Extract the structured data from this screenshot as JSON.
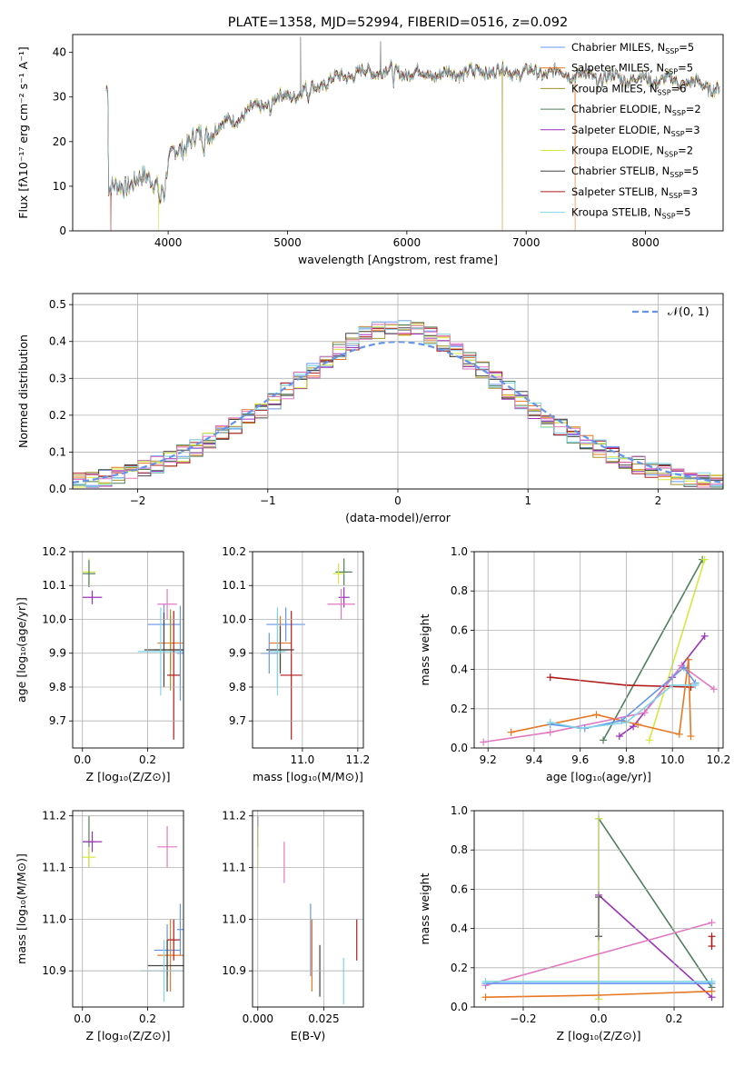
{
  "chart_data": [
    {
      "id": "spectrum",
      "type": "line",
      "title": "PLATE=1358, MJD=52994, FIBERID=0516, z=0.092",
      "xlabel": "wavelength [Angstrom, rest frame]",
      "ylabel": "Flux [fλ10⁻¹⁷ erg cm⁻² s⁻¹ A⁻¹]",
      "xlim": [
        3200,
        8650
      ],
      "ylim": [
        0,
        44
      ],
      "xticks": [
        4000,
        5000,
        6000,
        7000,
        8000
      ],
      "yticks": [
        0,
        10,
        20,
        30,
        40
      ],
      "grid": false,
      "legend_position": "top-right",
      "shape": {
        "x": [
          3500,
          3700,
          3850,
          3950,
          4050,
          4250,
          4400,
          4700,
          4900,
          5100,
          5300,
          5500,
          5800,
          6000,
          6300,
          6600,
          7000,
          7300,
          7600,
          8000,
          8300,
          8600
        ],
        "y": [
          9,
          11,
          12,
          10,
          18,
          21,
          23,
          27,
          29.5,
          31,
          33,
          35,
          36,
          35.5,
          35,
          36,
          35.5,
          35.5,
          34.5,
          34,
          33.5,
          32
        ]
      },
      "drops": [
        {
          "x": 3520,
          "series": 7
        },
        {
          "x": 3920,
          "series": 5
        },
        {
          "x": 6800,
          "series": 2
        },
        {
          "x": 7410,
          "series": 1
        }
      ],
      "spikes": [
        {
          "x": 5110,
          "y": 43.5
        },
        {
          "x": 5780,
          "y": 42.5
        }
      ],
      "series": [
        {
          "name": "Chabrier MILES, N",
          "sub": "SSP",
          "count": "=5",
          "color": "#6495ed"
        },
        {
          "name": "Salpeter MILES, N",
          "sub": "SSP",
          "count": "=5",
          "color": "#e87722"
        },
        {
          "name": "Kroupa MILES, N",
          "sub": "SSP",
          "count": "=6",
          "color": "#a89227"
        },
        {
          "name": "Chabrier ELODIE, N",
          "sub": "SSP",
          "count": "=2",
          "color": "#4f7f5a"
        },
        {
          "name": "Salpeter ELODIE, N",
          "sub": "SSP",
          "count": "=3",
          "color": "#9b30b8"
        },
        {
          "name": "Kroupa ELODIE, N",
          "sub": "SSP",
          "count": "=2",
          "color": "#d4ea3c"
        },
        {
          "name": "Chabrier STELIB, N",
          "sub": "SSP",
          "count": "=5",
          "color": "#444444"
        },
        {
          "name": "Salpeter STELIB, N",
          "sub": "SSP",
          "count": "=3",
          "color": "#b01a1a"
        },
        {
          "name": "Kroupa STELIB, N",
          "sub": "SSP",
          "count": "=5",
          "color": "#7fd6e8"
        }
      ]
    },
    {
      "id": "residual-hist",
      "type": "histogram",
      "xlabel": "(data-model)/error",
      "ylabel": "Normed distribution",
      "xlim": [
        -2.5,
        2.5
      ],
      "ylim": [
        0,
        0.53
      ],
      "xticks": [
        -2,
        -1,
        0,
        1,
        2
      ],
      "yticks": [
        0.0,
        0.1,
        0.2,
        0.3,
        0.4,
        0.5
      ],
      "grid": true,
      "bin_width": 0.1,
      "legend_position": "top-right",
      "gaussian_label": "𝒩(0, 1)",
      "gaussian_color": "#6495ed",
      "series_colors": [
        "#6495ed",
        "#e87722",
        "#a89227",
        "#4f7f5a",
        "#9b30b8",
        "#d4ea3c",
        "#444444",
        "#b01a1a",
        "#7fd6e8",
        "#e377c2"
      ]
    },
    {
      "id": "age-vs-Z",
      "type": "errorbar",
      "xlabel": "Z [log₁₀(Z/Z⊙)]",
      "ylabel": "age  [log₁₀(age/yr)]",
      "xlim": [
        -0.03,
        0.31
      ],
      "ylim": [
        9.62,
        10.2
      ],
      "xticks": [
        0.0,
        0.2
      ],
      "yticks": [
        9.7,
        9.8,
        9.9,
        10.0,
        10.1,
        10.2
      ],
      "grid": true,
      "points": [
        {
          "x": 0.02,
          "y": 10.14,
          "xerr": 0.02,
          "yerr": 0.04,
          "color": "#d4ea3c"
        },
        {
          "x": 0.02,
          "y": 10.135,
          "xerr": 0.02,
          "yerr": 0.04,
          "color": "#4f7f5a"
        },
        {
          "x": 0.03,
          "y": 10.065,
          "xerr": 0.03,
          "yerr": 0.02,
          "color": "#9b30b8"
        },
        {
          "x": 0.26,
          "y": 10.045,
          "xerr": 0.03,
          "yerr": 0.045,
          "color": "#e377c2"
        },
        {
          "x": 0.25,
          "y": 9.985,
          "xerr": 0.05,
          "yerr": 0.06,
          "color": "#6495ed"
        },
        {
          "x": 0.27,
          "y": 9.93,
          "xerr": 0.04,
          "yerr": 0.08,
          "color": "#e87722"
        },
        {
          "x": 0.27,
          "y": 9.91,
          "xerr": 0.05,
          "yerr": 0.12,
          "color": "#a89227"
        },
        {
          "x": 0.25,
          "y": 9.91,
          "xerr": 0.06,
          "yerr": 0.11,
          "color": "#444444"
        },
        {
          "x": 0.24,
          "y": 9.905,
          "xerr": 0.07,
          "yerr": 0.13,
          "color": "#7fd6e8"
        },
        {
          "x": 0.28,
          "y": 9.835,
          "xerr": 0.02,
          "yerr": 0.19,
          "color": "#b01a1a"
        },
        {
          "x": 0.3,
          "y": 9.9,
          "xerr": 0.01,
          "yerr": 0.14,
          "color": "#6495ed"
        }
      ]
    },
    {
      "id": "age-vs-mass",
      "type": "errorbar",
      "xlabel": "mass [log₁₀(M/M⊙)]",
      "ylabel": "",
      "xlim": [
        10.82,
        11.22
      ],
      "ylim": [
        9.62,
        10.2
      ],
      "xticks": [
        10.8,
        11.0,
        11.2
      ],
      "yticks": [
        9.7,
        9.8,
        9.9,
        10.0,
        10.1,
        10.2
      ],
      "grid": true,
      "points": [
        {
          "x": 11.15,
          "y": 10.14,
          "xerr": 0.03,
          "yerr": 0.04,
          "color": "#4f7f5a"
        },
        {
          "x": 11.13,
          "y": 10.135,
          "xerr": 0.02,
          "yerr": 0.03,
          "color": "#d4ea3c"
        },
        {
          "x": 11.15,
          "y": 10.065,
          "xerr": 0.02,
          "yerr": 0.03,
          "color": "#9b30b8"
        },
        {
          "x": 11.14,
          "y": 10.045,
          "xerr": 0.05,
          "yerr": 0.045,
          "color": "#e377c2"
        },
        {
          "x": 10.94,
          "y": 9.985,
          "xerr": 0.07,
          "yerr": 0.05,
          "color": "#6495ed"
        },
        {
          "x": 10.92,
          "y": 9.93,
          "xerr": 0.04,
          "yerr": 0.08,
          "color": "#e87722"
        },
        {
          "x": 10.91,
          "y": 9.91,
          "xerr": 0.04,
          "yerr": 0.11,
          "color": "#a89227"
        },
        {
          "x": 10.92,
          "y": 9.91,
          "xerr": 0.05,
          "yerr": 0.07,
          "color": "#444444"
        },
        {
          "x": 10.91,
          "y": 9.905,
          "xerr": 0.03,
          "yerr": 0.13,
          "color": "#7fd6e8"
        },
        {
          "x": 10.96,
          "y": 9.835,
          "xerr": 0.04,
          "yerr": 0.19,
          "color": "#b01a1a"
        },
        {
          "x": 10.88,
          "y": 9.9,
          "xerr": 0.03,
          "yerr": 0.06,
          "color": "#6495ed"
        }
      ]
    },
    {
      "id": "weight-vs-age",
      "type": "line",
      "xlabel": "age  [log₁₀(age/yr)]",
      "ylabel": "mass weight",
      "xlim": [
        9.14,
        10.22
      ],
      "ylim": [
        0,
        1
      ],
      "xticks": [
        9.2,
        9.4,
        9.6,
        9.8,
        10.0,
        10.2
      ],
      "yticks": [
        0.0,
        0.2,
        0.4,
        0.6,
        0.8,
        1.0
      ],
      "grid": true,
      "series": [
        {
          "color": "#4f7f5a",
          "x": [
            9.7,
            10.13
          ],
          "y": [
            0.04,
            0.96
          ]
        },
        {
          "color": "#d4ea3c",
          "x": [
            9.9,
            10.14
          ],
          "y": [
            0.04,
            0.96
          ]
        },
        {
          "color": "#9b30b8",
          "x": [
            9.77,
            9.83,
            10.0,
            10.14
          ],
          "y": [
            0.06,
            0.11,
            0.36,
            0.57
          ]
        },
        {
          "color": "#b01a1a",
          "x": [
            9.47,
            9.8,
            10.08
          ],
          "y": [
            0.36,
            0.32,
            0.31
          ]
        },
        {
          "color": "#e377c2",
          "x": [
            9.18,
            9.47,
            9.88,
            10.04,
            10.18
          ],
          "y": [
            0.03,
            0.08,
            0.18,
            0.42,
            0.3
          ]
        },
        {
          "color": "#e87722",
          "x": [
            9.3,
            9.67,
            9.85,
            10.03,
            10.07,
            10.08
          ],
          "y": [
            0.08,
            0.17,
            0.12,
            0.07,
            0.45,
            0.06
          ]
        },
        {
          "color": "#6495ed",
          "x": [
            9.47,
            9.62,
            9.78,
            10.05,
            10.1
          ],
          "y": [
            0.12,
            0.1,
            0.14,
            0.41,
            0.33
          ]
        },
        {
          "color": "#7fd6e8",
          "x": [
            9.47,
            9.6,
            9.8,
            10.0,
            10.1
          ],
          "y": [
            0.13,
            0.1,
            0.13,
            0.32,
            0.32
          ]
        }
      ]
    },
    {
      "id": "mass-vs-Z",
      "type": "errorbar",
      "xlabel": "Z [log₁₀(Z/Z⊙)]",
      "ylabel": "mass [log₁₀(M/M⊙)]",
      "xlim": [
        -0.03,
        0.31
      ],
      "ylim": [
        10.83,
        11.21
      ],
      "xticks": [
        0.0,
        0.2
      ],
      "yticks": [
        10.9,
        11.0,
        11.1,
        11.2
      ],
      "grid": true,
      "points": [
        {
          "x": 0.02,
          "y": 11.15,
          "xerr": 0.02,
          "yerr": 0.05,
          "color": "#4f7f5a"
        },
        {
          "x": 0.03,
          "y": 11.15,
          "xerr": 0.03,
          "yerr": 0.02,
          "color": "#9b30b8"
        },
        {
          "x": 0.02,
          "y": 11.12,
          "xerr": 0.02,
          "yerr": 0.02,
          "color": "#d4ea3c"
        },
        {
          "x": 0.26,
          "y": 11.14,
          "xerr": 0.03,
          "yerr": 0.04,
          "color": "#e377c2"
        },
        {
          "x": 0.26,
          "y": 10.94,
          "xerr": 0.04,
          "yerr": 0.05,
          "color": "#6495ed"
        },
        {
          "x": 0.27,
          "y": 10.93,
          "xerr": 0.04,
          "yerr": 0.07,
          "color": "#e87722"
        },
        {
          "x": 0.26,
          "y": 10.91,
          "xerr": 0.06,
          "yerr": 0.05,
          "color": "#444444"
        },
        {
          "x": 0.25,
          "y": 10.9,
          "xerr": 0.07,
          "yerr": 0.06,
          "color": "#7fd6e8"
        },
        {
          "x": 0.28,
          "y": 10.96,
          "xerr": 0.02,
          "yerr": 0.04,
          "color": "#b01a1a"
        },
        {
          "x": 0.3,
          "y": 10.98,
          "xerr": 0.01,
          "yerr": 0.05,
          "color": "#6495ed"
        }
      ]
    },
    {
      "id": "mass-vs-ebv",
      "type": "errorbar",
      "xlabel": "E(B-V)",
      "ylabel": "",
      "xlim": [
        -0.002,
        0.04
      ],
      "ylim": [
        10.83,
        11.21
      ],
      "xticks": [
        0.0,
        0.025
      ],
      "yticks": [
        10.9,
        11.0,
        11.1,
        11.2
      ],
      "grid": true,
      "points": [
        {
          "x": 0.0,
          "y": 11.17,
          "xerr": 0,
          "yerr": 0.03,
          "color": "#4f7f5a"
        },
        {
          "x": 0.0,
          "y": 11.14,
          "xerr": 0,
          "yerr": 0.04,
          "color": "#d4ea3c"
        },
        {
          "x": 0.01,
          "y": 11.11,
          "xerr": 0,
          "yerr": 0.04,
          "color": "#e377c2"
        },
        {
          "x": 0.02,
          "y": 10.96,
          "xerr": 0,
          "yerr": 0.07,
          "color": "#6495ed"
        },
        {
          "x": 0.0205,
          "y": 10.93,
          "xerr": 0,
          "yerr": 0.07,
          "color": "#e87722"
        },
        {
          "x": 0.0235,
          "y": 10.9,
          "xerr": 0,
          "yerr": 0.05,
          "color": "#444444"
        },
        {
          "x": 0.0325,
          "y": 10.88,
          "xerr": 0,
          "yerr": 0.045,
          "color": "#7fd6e8"
        },
        {
          "x": 0.0375,
          "y": 10.96,
          "xerr": 0,
          "yerr": 0.04,
          "color": "#b01a1a"
        }
      ]
    },
    {
      "id": "weight-vs-Z",
      "type": "line",
      "xlabel": "Z [log₁₀(Z/Z⊙)]",
      "ylabel": "mass weight",
      "xlim": [
        -0.33,
        0.33
      ],
      "ylim": [
        0,
        1
      ],
      "xticks": [
        -0.2,
        0.0,
        0.2
      ],
      "yticks": [
        0.0,
        0.2,
        0.4,
        0.6,
        0.8,
        1.0
      ],
      "grid": true,
      "series": [
        {
          "color": "#4f7f5a",
          "x": [
            0.0,
            0.3
          ],
          "y": [
            0.96,
            0.1
          ]
        },
        {
          "color": "#d4ea3c",
          "x": [
            0.0,
            0.0
          ],
          "y": [
            0.96,
            0.04
          ]
        },
        {
          "color": "#9b30b8",
          "x": [
            0.0,
            0.3
          ],
          "y": [
            0.57,
            0.05
          ]
        },
        {
          "color": "#e377c2",
          "x": [
            -0.3,
            0.3
          ],
          "y": [
            0.11,
            0.43
          ]
        },
        {
          "color": "#e87722",
          "x": [
            -0.3,
            0.0,
            0.3
          ],
          "y": [
            0.05,
            0.06,
            0.08
          ]
        },
        {
          "color": "#6495ed",
          "x": [
            -0.3,
            0.3
          ],
          "y": [
            0.12,
            0.12
          ]
        },
        {
          "color": "#7fd6e8",
          "x": [
            -0.3,
            0.3
          ],
          "y": [
            0.13,
            0.13
          ]
        },
        {
          "color": "#b01a1a",
          "x": [
            0.3,
            0.3
          ],
          "y": [
            0.36,
            0.31
          ]
        },
        {
          "color": "#444444",
          "x": [
            0.0,
            0.0
          ],
          "y": [
            0.56,
            0.36
          ]
        }
      ]
    }
  ]
}
